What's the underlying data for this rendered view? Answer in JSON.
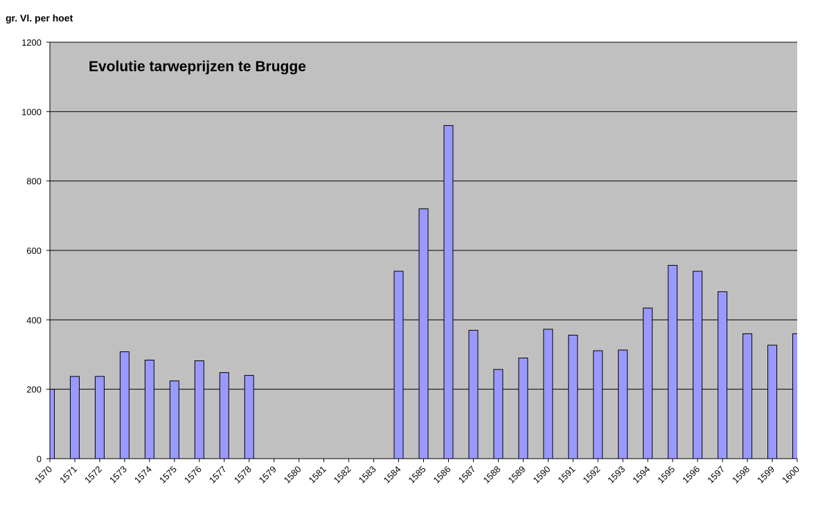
{
  "chart_data": {
    "type": "bar",
    "title": "Evolutie tarweprijzen te Brugge",
    "ylabel": "gr. Vl. per hoet",
    "xlabel": "",
    "ylim": [
      0,
      1200
    ],
    "yticks": [
      0,
      200,
      400,
      600,
      800,
      1000,
      1200
    ],
    "grid": true,
    "legend": "none",
    "colors": {
      "bar_fill": "#9999ff",
      "bar_stroke": "#000000",
      "plot_background": "#c0c0c0",
      "gridline": "#000000"
    },
    "categories": [
      "1570",
      "1571",
      "1572",
      "1573",
      "1574",
      "1575",
      "1576",
      "1577",
      "1578",
      "1579",
      "1580",
      "1581",
      "1582",
      "1583",
      "1584",
      "1585",
      "1586",
      "1587",
      "1588",
      "1589",
      "1590",
      "1591",
      "1592",
      "1593",
      "1594",
      "1595",
      "1596",
      "1597",
      "1598",
      "1599",
      "1600"
    ],
    "values": [
      200,
      237,
      237,
      308,
      284,
      224,
      282,
      248,
      240,
      null,
      null,
      null,
      null,
      null,
      540,
      720,
      960,
      370,
      257,
      290,
      373,
      356,
      311,
      313,
      434,
      557,
      540,
      481,
      360,
      327,
      360
    ]
  }
}
